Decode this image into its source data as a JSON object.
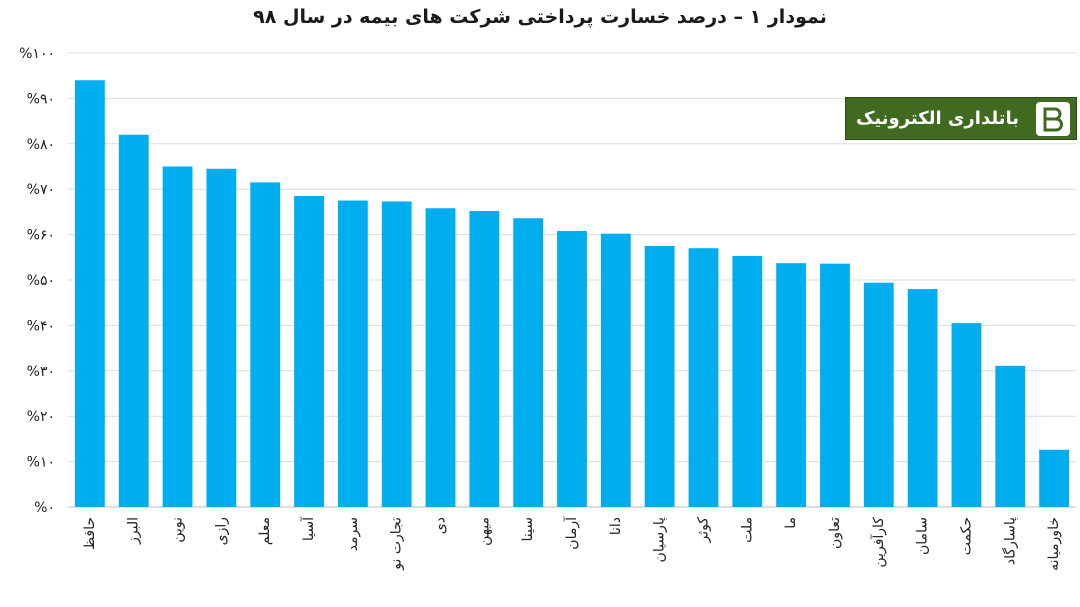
{
  "chart_data": {
    "type": "bar",
    "title": "نمودار ۱ – درصد خسارت پرداختی شرکت های بیمه در سال ۹۸",
    "xlabel": "",
    "ylabel": "",
    "ylim": [
      0,
      100
    ],
    "grid": true,
    "bar_color": "#00adef",
    "ytick_labels": [
      "%۰",
      "%۱۰",
      "%۲۰",
      "%۳۰",
      "%۴۰",
      "%۵۰",
      "%۶۰",
      "%۷۰",
      "%۸۰",
      "%۹۰",
      "%۱۰۰"
    ],
    "categories": [
      "حافظ",
      "البرز",
      "نوین",
      "رازی",
      "معلم",
      "آسیا",
      "سرمد",
      "تجارت نو",
      "دی",
      "میهن",
      "سینا",
      "آرمان",
      "دانا",
      "پارسیان",
      "کوثر",
      "ملت",
      "ما",
      "تعاون",
      "کارآفرین",
      "سامان",
      "حکمت",
      "پاسارگاد",
      "خاورمیانه"
    ],
    "values": [
      94,
      82,
      75,
      74.5,
      71.5,
      68.5,
      67.5,
      67.3,
      65.8,
      65.2,
      63.6,
      60.8,
      60.2,
      57.5,
      57,
      55.3,
      53.7,
      53.6,
      49.4,
      48,
      40.5,
      31.1,
      12.6
    ]
  },
  "watermark": {
    "text": "باتلداری الکترونیک",
    "logo_letter": "B",
    "background": "#3f6a1f"
  }
}
